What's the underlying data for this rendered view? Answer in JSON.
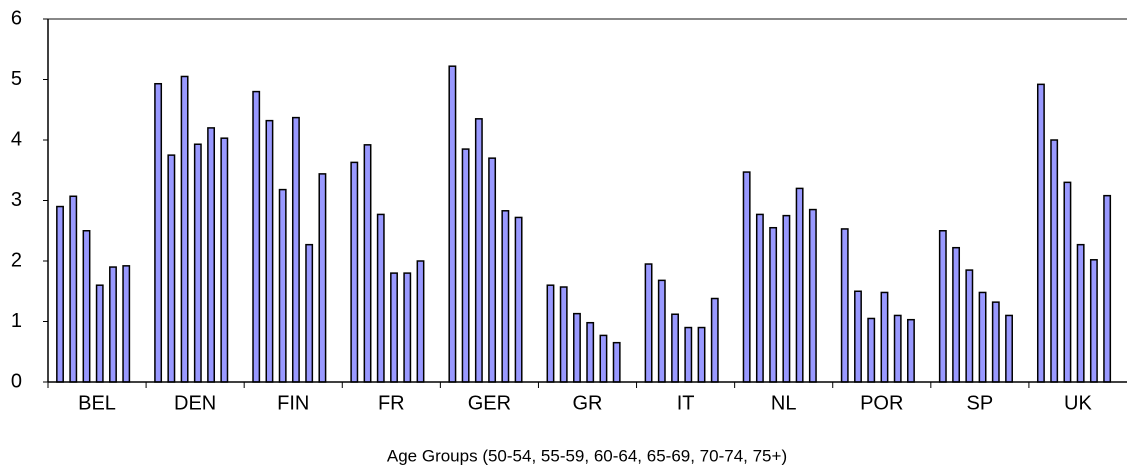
{
  "chart_data": {
    "type": "bar",
    "x_label": "Age Groups (50-54, 55-59, 60-64, 65-69, 70-74, 75+)",
    "categories": [
      "BEL",
      "DEN",
      "FIN",
      "FR",
      "GER",
      "GR",
      "IT",
      "NL",
      "POR",
      "SP",
      "UK"
    ],
    "series": [
      {
        "color": "#9999ff",
        "values": [
          2.9,
          4.93,
          4.8,
          3.63,
          5.22,
          1.6,
          1.95,
          3.47,
          2.53,
          2.5,
          4.92
        ]
      },
      {
        "color": "#9999ff",
        "values": [
          3.07,
          3.75,
          4.32,
          3.92,
          3.85,
          1.57,
          1.68,
          2.77,
          1.5,
          2.22,
          4.0
        ]
      },
      {
        "color": "#9999ff",
        "values": [
          2.5,
          5.05,
          3.18,
          2.77,
          4.35,
          1.13,
          1.12,
          2.55,
          1.05,
          1.85,
          3.3
        ]
      },
      {
        "color": "#9999ff",
        "values": [
          1.6,
          3.93,
          4.37,
          1.8,
          3.7,
          0.98,
          0.9,
          2.75,
          1.48,
          1.48,
          2.27
        ]
      },
      {
        "color": "#9999ff",
        "values": [
          1.9,
          4.2,
          2.27,
          1.8,
          2.83,
          0.77,
          0.9,
          3.2,
          1.1,
          1.32,
          2.02
        ]
      },
      {
        "color": "#9999ff",
        "values": [
          1.92,
          4.03,
          3.44,
          2.0,
          2.72,
          0.65,
          1.38,
          2.85,
          1.03,
          1.1,
          3.08
        ]
      }
    ],
    "ylim": [
      0,
      6
    ],
    "yticks": [
      0,
      1,
      2,
      3,
      4,
      5,
      6
    ]
  }
}
